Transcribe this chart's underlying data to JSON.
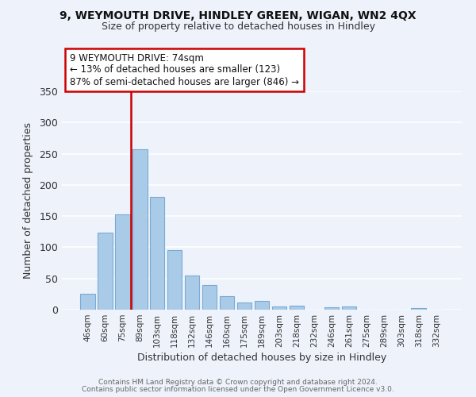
{
  "title": "9, WEYMOUTH DRIVE, HINDLEY GREEN, WIGAN, WN2 4QX",
  "subtitle": "Size of property relative to detached houses in Hindley",
  "xlabel": "Distribution of detached houses by size in Hindley",
  "ylabel": "Number of detached properties",
  "bar_color": "#aacbe8",
  "bar_edge_color": "#78aad4",
  "background_color": "#edf2fb",
  "grid_color": "#ffffff",
  "bin_labels": [
    "46sqm",
    "60sqm",
    "75sqm",
    "89sqm",
    "103sqm",
    "118sqm",
    "132sqm",
    "146sqm",
    "160sqm",
    "175sqm",
    "189sqm",
    "203sqm",
    "218sqm",
    "232sqm",
    "246sqm",
    "261sqm",
    "275sqm",
    "289sqm",
    "303sqm",
    "318sqm",
    "332sqm"
  ],
  "bar_values": [
    25,
    124,
    153,
    257,
    181,
    96,
    55,
    40,
    22,
    12,
    14,
    5,
    6,
    0,
    4,
    5,
    0,
    0,
    0,
    2,
    0
  ],
  "annotation_text_line1": "9 WEYMOUTH DRIVE: 74sqm",
  "annotation_text_line2": "← 13% of detached houses are smaller (123)",
  "annotation_text_line3": "87% of semi-detached houses are larger (846) →",
  "vline_color": "#cc0000",
  "annotation_box_edge_color": "#cc0000",
  "ylim": [
    0,
    350
  ],
  "vline_x": 2.5,
  "footer_line1": "Contains HM Land Registry data © Crown copyright and database right 2024.",
  "footer_line2": "Contains public sector information licensed under the Open Government Licence v3.0."
}
